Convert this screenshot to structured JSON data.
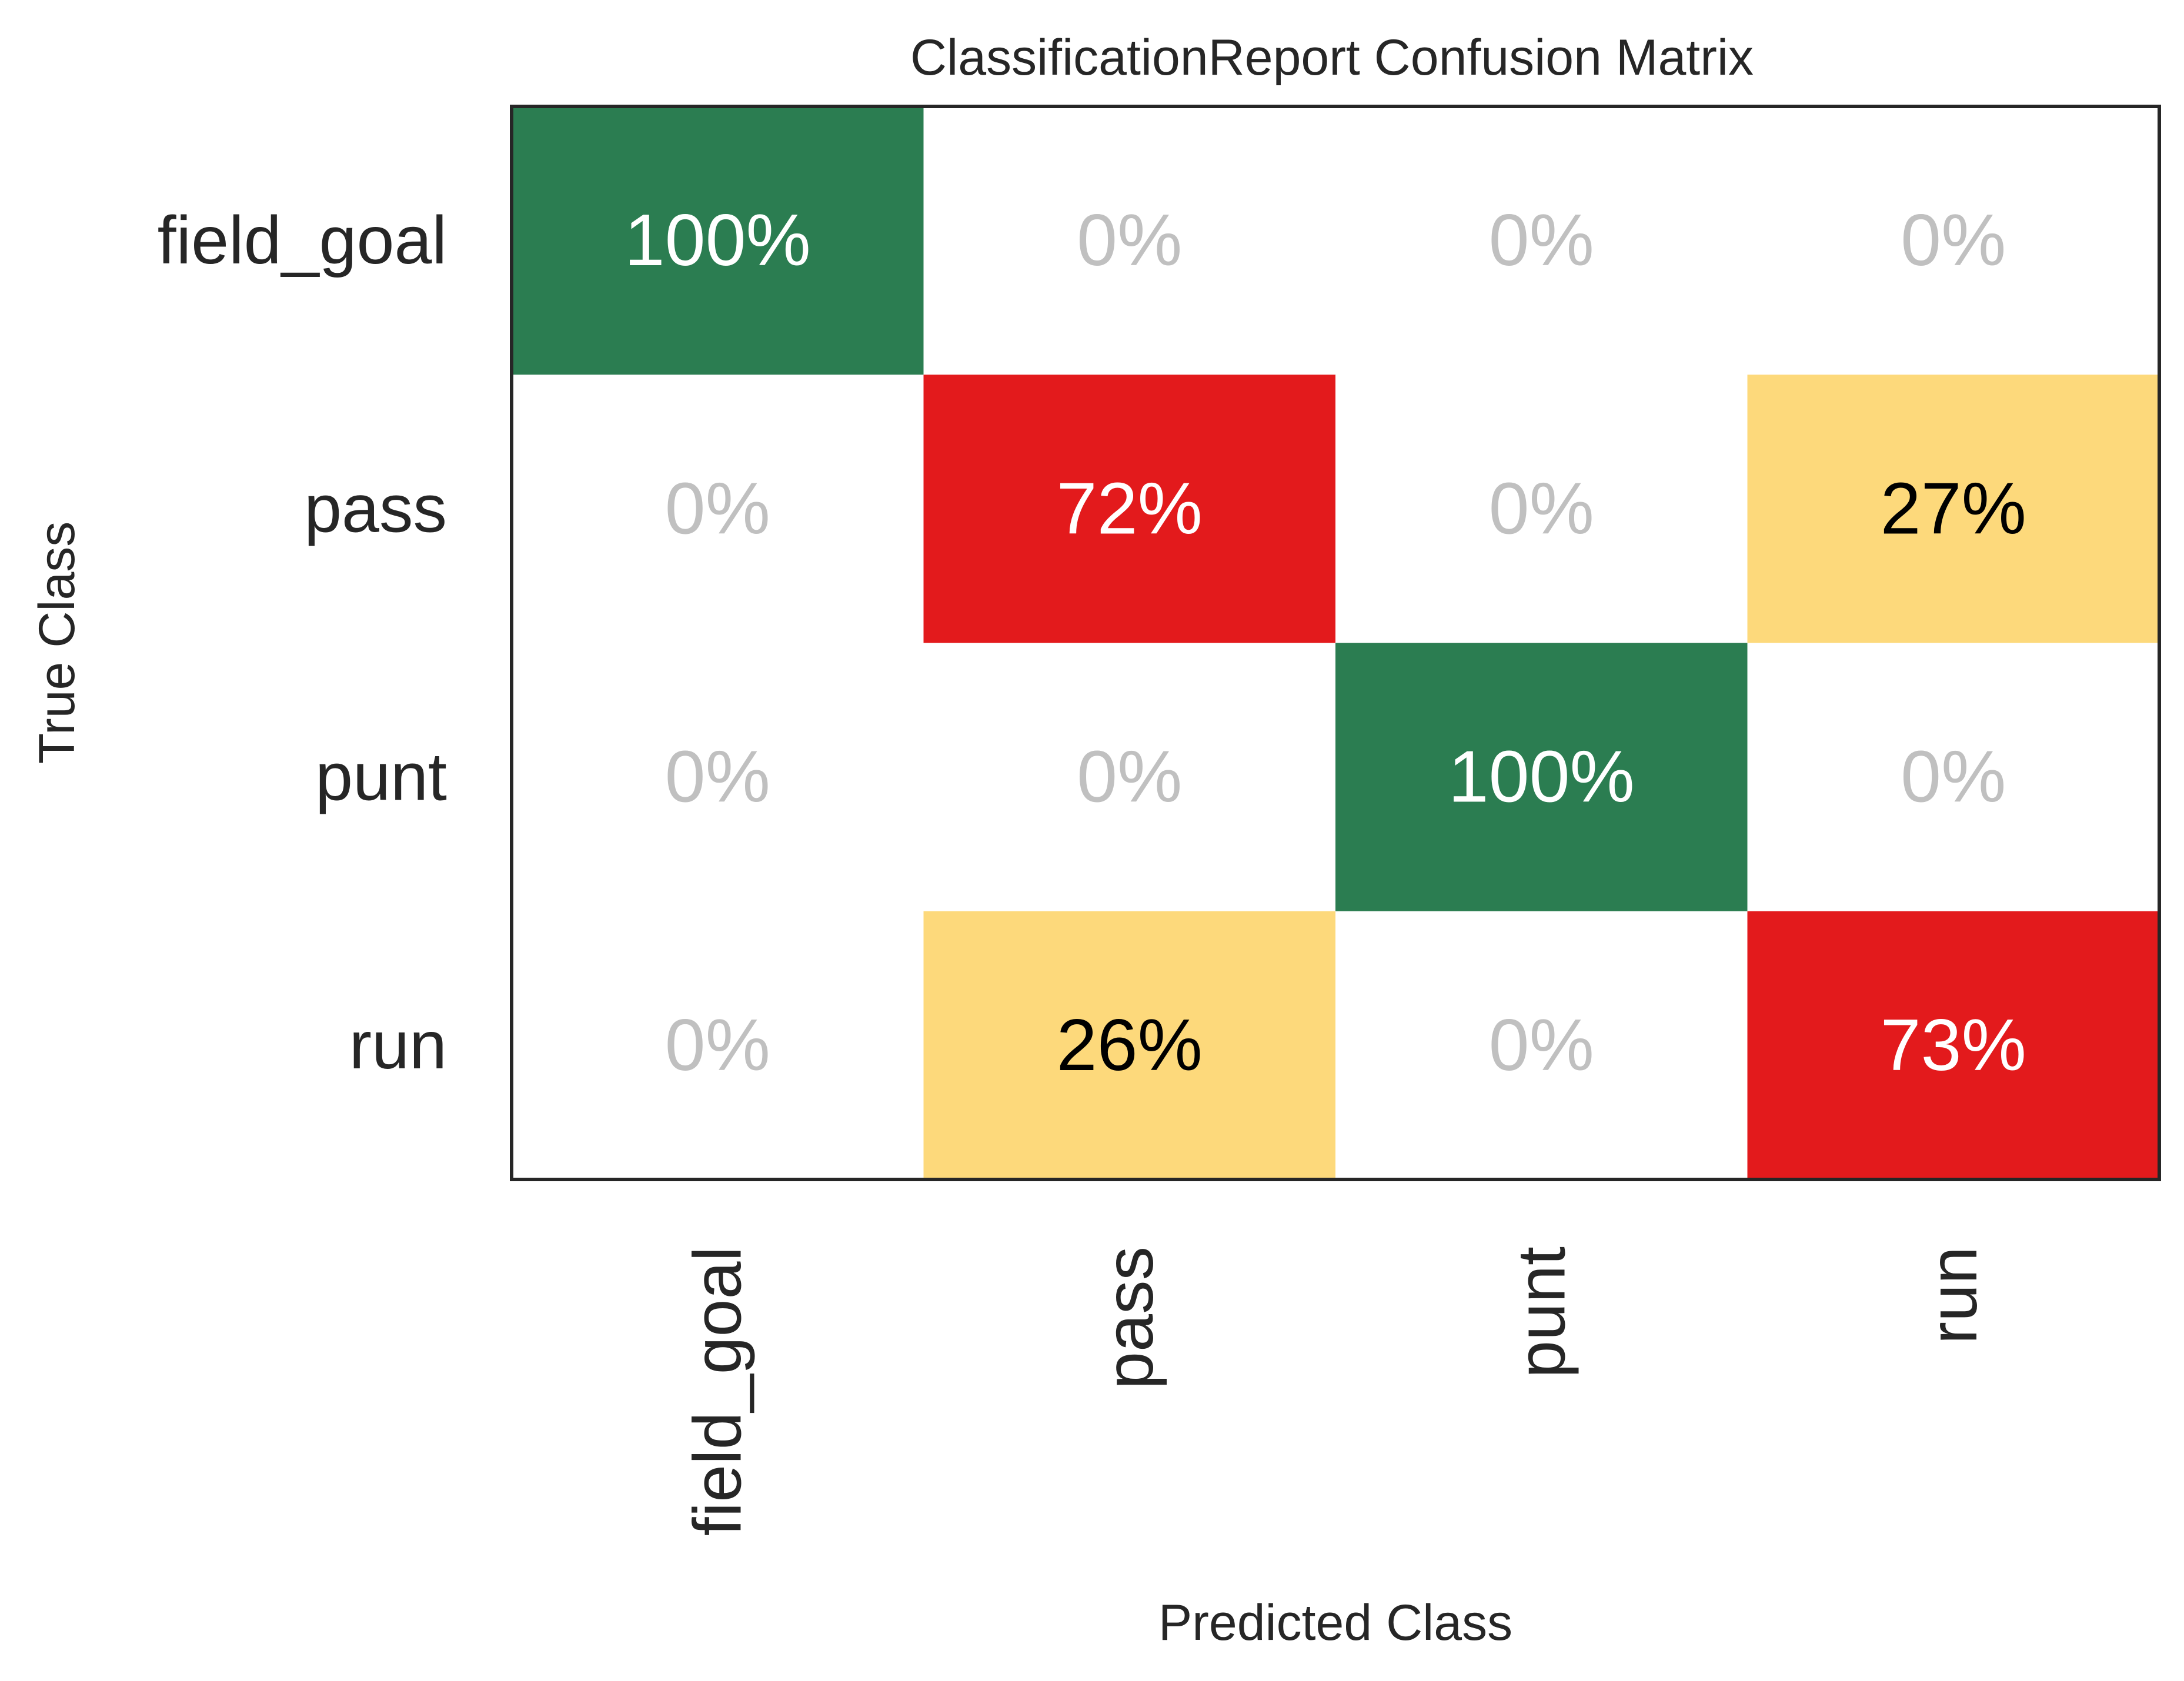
{
  "chart_data": {
    "type": "heatmap",
    "title": "ClassificationReport Confusion Matrix",
    "xlabel": "Predicted Class",
    "ylabel": "True Class",
    "x_categories": [
      "field_goal",
      "pass",
      "punt",
      "run"
    ],
    "y_categories": [
      "field_goal",
      "pass",
      "punt",
      "run"
    ],
    "values": [
      [
        100,
        0,
        0,
        0
      ],
      [
        0,
        72,
        0,
        27
      ],
      [
        0,
        0,
        100,
        0
      ],
      [
        0,
        26,
        0,
        73
      ]
    ],
    "value_labels": [
      [
        "100%",
        "0%",
        "0%",
        "0%"
      ],
      [
        "0%",
        "72%",
        "0%",
        "27%"
      ],
      [
        "0%",
        "0%",
        "100%",
        "0%"
      ],
      [
        "0%",
        "26%",
        "0%",
        "73%"
      ]
    ],
    "colors": {
      "high": "#2b7d51",
      "mid": "#e31a1c",
      "low": "#fdd97b",
      "zero": "#ffffff",
      "frame": "#262626",
      "zero_text": "#c0c0c0",
      "light_text": "#ffffff",
      "dark_text": "#000000"
    }
  }
}
